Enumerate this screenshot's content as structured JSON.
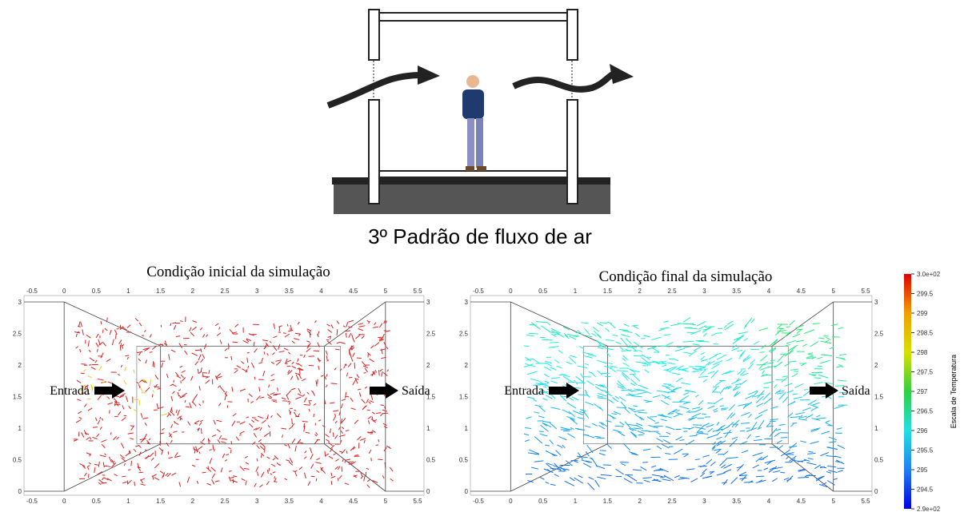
{
  "header": {
    "title": "3º Padrão de fluxo de ar"
  },
  "panels": [
    {
      "title": "Condição inicial da simulação",
      "inlet": "Entrada",
      "outlet": "Saída"
    },
    {
      "title": "Condição final da simulação",
      "inlet": "Entrada",
      "outlet": "Saída"
    }
  ],
  "axes": {
    "xticks": [
      "-0.5",
      "0",
      "0.5",
      "1",
      "1.5",
      "2",
      "2.5",
      "3",
      "3.5",
      "4",
      "4.5",
      "5",
      "5.5"
    ],
    "yticks": [
      "0",
      "0.5",
      "1",
      "1.5",
      "2",
      "2.5",
      "3"
    ]
  },
  "colorbar": {
    "label": "Escala de Temperatura",
    "ticks": [
      "3.0e+02",
      "299.5",
      "299",
      "298.5",
      "298",
      "297.5",
      "297",
      "296.5",
      "296",
      "295.5",
      "295",
      "294.5",
      "2.9e+02"
    ]
  }
}
